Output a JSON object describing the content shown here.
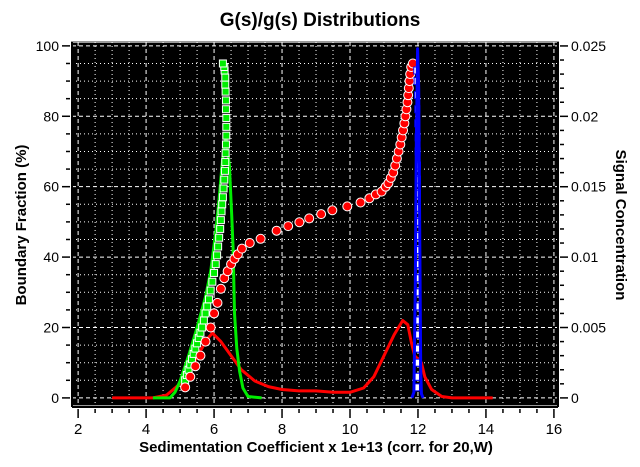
{
  "chart_data": {
    "type": "scatter",
    "title": "G(s)/g(s) Distributions",
    "xlabel": "Sedimentation Coefficient x 1e+13 (corr. for 20,W)",
    "ylabel": "Boundary Fraction (%)",
    "y2label": "Signal Concentration",
    "xlim": [
      1.82,
      16.12
    ],
    "ylim": [
      -2.3,
      101.1
    ],
    "y2lim": [
      -0.000575,
      0.02528
    ],
    "xticks": [
      2,
      4,
      6,
      8,
      10,
      12,
      14,
      16
    ],
    "xtick_labels": [
      "2",
      "4",
      "6",
      "8",
      "10",
      "12",
      "14",
      "16"
    ],
    "yticks": [
      0,
      20,
      40,
      60,
      80,
      100
    ],
    "ytick_labels": [
      "0",
      "20",
      "40",
      "60",
      "80",
      "100"
    ],
    "y2ticks": [
      0,
      0.005,
      0.01,
      0.015,
      0.02,
      0.025
    ],
    "y2tick_labels": [
      "0",
      "0.005",
      "0.01",
      "0.015",
      "0.02",
      "0.025"
    ],
    "grid": true,
    "background": "#000000",
    "series": [
      {
        "name": "red g(s)",
        "kind": "line",
        "axis": "right",
        "color": "#ff0000",
        "points": [
          [
            3.0,
            0
          ],
          [
            4.2,
            0
          ],
          [
            4.6,
            0.0002
          ],
          [
            5.0,
            0.001
          ],
          [
            5.4,
            0.0025
          ],
          [
            5.8,
            0.0042
          ],
          [
            5.95,
            0.0046
          ],
          [
            6.2,
            0.004
          ],
          [
            6.5,
            0.003
          ],
          [
            6.8,
            0.002
          ],
          [
            7.2,
            0.0012
          ],
          [
            7.6,
            0.0008
          ],
          [
            8.0,
            0.0006
          ],
          [
            8.5,
            0.0005
          ],
          [
            9.0,
            0.0005
          ],
          [
            9.5,
            0.0004
          ],
          [
            10.0,
            0.0004
          ],
          [
            10.4,
            0.0007
          ],
          [
            10.7,
            0.0015
          ],
          [
            11.0,
            0.003
          ],
          [
            11.3,
            0.0045
          ],
          [
            11.55,
            0.0055
          ],
          [
            11.7,
            0.0052
          ],
          [
            11.8,
            0.004
          ],
          [
            11.9,
            0.003
          ],
          [
            12.1,
            0.0025
          ],
          [
            12.2,
            0.0015
          ],
          [
            12.4,
            0.0006
          ],
          [
            12.7,
            0.0001
          ],
          [
            13.0,
            0
          ],
          [
            14.2,
            0
          ]
        ]
      },
      {
        "name": "green g(s)",
        "kind": "line",
        "axis": "right",
        "color": "#00ee00",
        "points": [
          [
            4.2,
            0
          ],
          [
            4.7,
            0
          ],
          [
            4.85,
            0.0004
          ],
          [
            5.0,
            0.0012
          ],
          [
            5.25,
            0.003
          ],
          [
            5.5,
            0.005
          ],
          [
            5.75,
            0.0072
          ],
          [
            5.9,
            0.009
          ],
          [
            6.05,
            0.0118
          ],
          [
            6.15,
            0.0142
          ],
          [
            6.25,
            0.017
          ],
          [
            6.35,
            0.0185
          ],
          [
            6.45,
            0.0165
          ],
          [
            6.52,
            0.013
          ],
          [
            6.56,
            0.0106
          ],
          [
            6.6,
            0.006
          ],
          [
            6.67,
            0.0035
          ],
          [
            6.75,
            0.0019
          ],
          [
            6.85,
            0.0007
          ],
          [
            7.0,
            0.0001
          ],
          [
            7.4,
            0
          ]
        ]
      },
      {
        "name": "blue g(s)",
        "kind": "line",
        "axis": "right",
        "color": "#0000ff",
        "points": [
          [
            11.82,
            0
          ],
          [
            11.88,
            0.0004
          ],
          [
            11.92,
            0.008
          ],
          [
            11.95,
            0.018
          ],
          [
            11.99,
            0.0248
          ],
          [
            12.02,
            0.022
          ],
          [
            12.05,
            0.012
          ],
          [
            12.08,
            0.002
          ],
          [
            12.1,
            0.0003
          ],
          [
            12.15,
            0
          ]
        ]
      },
      {
        "name": "green G(s)",
        "kind": "squares",
        "axis": "left",
        "color": "#00ee00",
        "points": [
          [
            5.15,
            5
          ],
          [
            5.2,
            6.5
          ],
          [
            5.25,
            8
          ],
          [
            5.3,
            9.5
          ],
          [
            5.35,
            11
          ],
          [
            5.4,
            12.5
          ],
          [
            5.45,
            14
          ],
          [
            5.5,
            15.5
          ],
          [
            5.55,
            17
          ],
          [
            5.6,
            18.5
          ],
          [
            5.65,
            20
          ],
          [
            5.7,
            22
          ],
          [
            5.75,
            24
          ],
          [
            5.8,
            26
          ],
          [
            5.85,
            28
          ],
          [
            5.9,
            30.5
          ],
          [
            5.95,
            33
          ],
          [
            6.0,
            35.5
          ],
          [
            6.05,
            38
          ],
          [
            6.09,
            40.5
          ],
          [
            6.12,
            43
          ],
          [
            6.15,
            45.5
          ],
          [
            6.18,
            48
          ],
          [
            6.2,
            50.5
          ],
          [
            6.22,
            53
          ],
          [
            6.24,
            55
          ],
          [
            6.26,
            57
          ],
          [
            6.28,
            59.5
          ],
          [
            6.3,
            62
          ],
          [
            6.32,
            64.5
          ],
          [
            6.33,
            67
          ],
          [
            6.34,
            69.5
          ],
          [
            6.35,
            72
          ],
          [
            6.36,
            74.5
          ],
          [
            6.36,
            77
          ],
          [
            6.36,
            79.5
          ],
          [
            6.35,
            82
          ],
          [
            6.35,
            84.5
          ],
          [
            6.34,
            87
          ],
          [
            6.33,
            89
          ],
          [
            6.33,
            91
          ],
          [
            6.31,
            93
          ],
          [
            6.3,
            94
          ],
          [
            6.26,
            95
          ]
        ]
      },
      {
        "name": "red G(s)",
        "kind": "circles",
        "axis": "left",
        "color": "#ff0000",
        "points": [
          [
            5.15,
            3
          ],
          [
            5.3,
            6
          ],
          [
            5.45,
            9
          ],
          [
            5.6,
            12
          ],
          [
            5.75,
            16
          ],
          [
            5.9,
            20
          ],
          [
            6.0,
            24
          ],
          [
            6.1,
            27
          ],
          [
            6.2,
            31
          ],
          [
            6.3,
            34
          ],
          [
            6.4,
            36
          ],
          [
            6.5,
            38
          ],
          [
            6.6,
            39.5
          ],
          [
            6.7,
            40.8
          ],
          [
            6.82,
            42.4
          ],
          [
            7.05,
            44
          ],
          [
            7.37,
            45.2
          ],
          [
            7.84,
            47.5
          ],
          [
            8.18,
            48.8
          ],
          [
            8.51,
            49.9
          ],
          [
            8.8,
            51
          ],
          [
            9.15,
            52.2
          ],
          [
            9.48,
            53.3
          ],
          [
            9.92,
            54.4
          ],
          [
            10.31,
            55.5
          ],
          [
            10.57,
            56.7
          ],
          [
            10.76,
            57.8
          ],
          [
            10.93,
            58.6
          ],
          [
            11.05,
            60
          ],
          [
            11.13,
            61
          ],
          [
            11.2,
            62.5
          ],
          [
            11.27,
            64
          ],
          [
            11.33,
            66
          ],
          [
            11.38,
            68
          ],
          [
            11.43,
            70
          ],
          [
            11.48,
            72
          ],
          [
            11.52,
            74
          ],
          [
            11.56,
            76
          ],
          [
            11.6,
            78
          ],
          [
            11.63,
            80
          ],
          [
            11.66,
            82
          ],
          [
            11.69,
            84
          ],
          [
            11.71,
            86
          ],
          [
            11.73,
            88
          ],
          [
            11.75,
            90
          ],
          [
            11.77,
            92
          ],
          [
            11.8,
            94
          ],
          [
            11.85,
            95
          ]
        ]
      },
      {
        "name": "blue G(s)",
        "kind": "squares",
        "axis": "left",
        "color": "#ffffff",
        "points": [
          [
            11.97,
            3
          ],
          [
            11.97,
            6
          ],
          [
            11.98,
            10
          ],
          [
            11.98,
            14
          ],
          [
            11.98,
            18
          ],
          [
            11.99,
            22
          ],
          [
            11.99,
            26
          ],
          [
            11.99,
            30
          ],
          [
            12.0,
            34
          ],
          [
            12.0,
            38
          ],
          [
            12.0,
            42
          ],
          [
            12.0,
            46
          ],
          [
            12.0,
            50
          ],
          [
            12.0,
            54
          ],
          [
            12.0,
            58
          ],
          [
            12.0,
            62
          ],
          [
            12.0,
            66
          ],
          [
            11.99,
            70
          ],
          [
            11.99,
            74
          ],
          [
            11.98,
            78
          ],
          [
            11.98,
            82
          ],
          [
            11.97,
            86
          ],
          [
            11.96,
            90
          ],
          [
            11.95,
            93
          ]
        ]
      }
    ]
  }
}
